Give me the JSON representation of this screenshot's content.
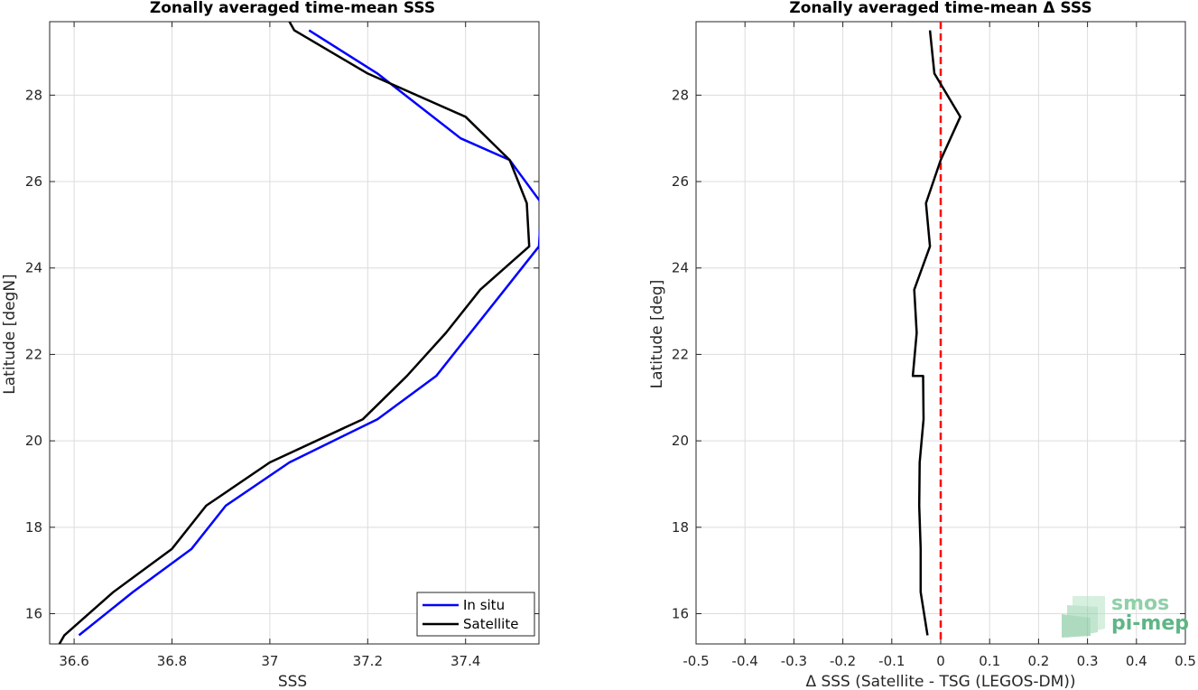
{
  "chart_data": [
    {
      "type": "line",
      "title": "Zonally averaged time-mean SSS",
      "xlabel": "SSS",
      "ylabel": "Latitude [degN]",
      "xlim": [
        36.55,
        37.55
      ],
      "ylim": [
        15.3,
        29.7
      ],
      "xticks": [
        36.6,
        36.8,
        37,
        37.2,
        37.4
      ],
      "xtick_labels": [
        "36.6",
        "36.8",
        "37",
        "37.2",
        "37.4"
      ],
      "yticks": [
        16,
        18,
        20,
        22,
        24,
        26,
        28
      ],
      "ytick_labels": [
        "16",
        "18",
        "20",
        "22",
        "24",
        "26",
        "28"
      ],
      "grid": true,
      "legend": "bottom-right",
      "series": [
        {
          "name": "In situ",
          "color": "#0000ff",
          "x": [
            36.61,
            36.72,
            36.84,
            36.91,
            37.04,
            37.22,
            37.34,
            37.41,
            37.48,
            37.55,
            37.555,
            37.49,
            37.39,
            37.22,
            37.08
          ],
          "y": [
            15.5,
            16.5,
            17.5,
            18.5,
            19.5,
            20.5,
            21.5,
            22.5,
            23.5,
            24.5,
            25.5,
            26.5,
            27.0,
            28.5,
            29.5
          ]
        },
        {
          "name": "Satellite",
          "color": "#000000",
          "x": [
            36.57,
            36.58,
            36.68,
            36.8,
            36.87,
            37.0,
            37.19,
            37.28,
            37.36,
            37.43,
            37.53,
            37.525,
            37.49,
            37.4,
            37.2,
            37.05,
            37.04
          ],
          "y": [
            15.3,
            15.5,
            16.5,
            17.5,
            18.5,
            19.5,
            20.5,
            21.5,
            22.5,
            23.5,
            24.5,
            25.5,
            26.5,
            27.5,
            28.5,
            29.5,
            29.7
          ]
        }
      ]
    },
    {
      "type": "line",
      "title": "Zonally averaged time-mean Δ SSS",
      "xlabel": "Δ SSS (Satellite - TSG (LEGOS-DM))",
      "ylabel": "Latitude [deg]",
      "xlim": [
        -0.5,
        0.5
      ],
      "ylim": [
        15.3,
        29.7
      ],
      "xticks": [
        -0.5,
        -0.4,
        -0.3,
        -0.2,
        -0.1,
        0,
        0.1,
        0.2,
        0.3,
        0.4,
        0.5
      ],
      "xtick_labels": [
        "-0.5",
        "-0.4",
        "-0.3",
        "-0.2",
        "-0.1",
        "0",
        "0.1",
        "0.2",
        "0.3",
        "0.4",
        "0.5"
      ],
      "yticks": [
        16,
        18,
        20,
        22,
        24,
        26,
        28
      ],
      "ytick_labels": [
        "16",
        "18",
        "20",
        "22",
        "24",
        "26",
        "28"
      ],
      "grid": true,
      "reference_line": {
        "x": 0,
        "color": "#ff0000",
        "style": "dashed"
      },
      "series": [
        {
          "color": "#000000",
          "x": [
            -0.027,
            -0.041,
            -0.041,
            -0.044,
            -0.043,
            -0.035,
            -0.036,
            -0.057,
            -0.049,
            -0.054,
            -0.022,
            -0.03,
            0.0,
            0.04,
            -0.013,
            -0.022
          ],
          "y": [
            15.5,
            16.5,
            17.5,
            18.5,
            19.5,
            20.5,
            21.5,
            21.5,
            22.5,
            23.5,
            24.5,
            25.5,
            26.5,
            27.5,
            28.5,
            29.5
          ]
        }
      ]
    }
  ],
  "logo": {
    "line1": "smos",
    "line2": "pi-mep"
  }
}
